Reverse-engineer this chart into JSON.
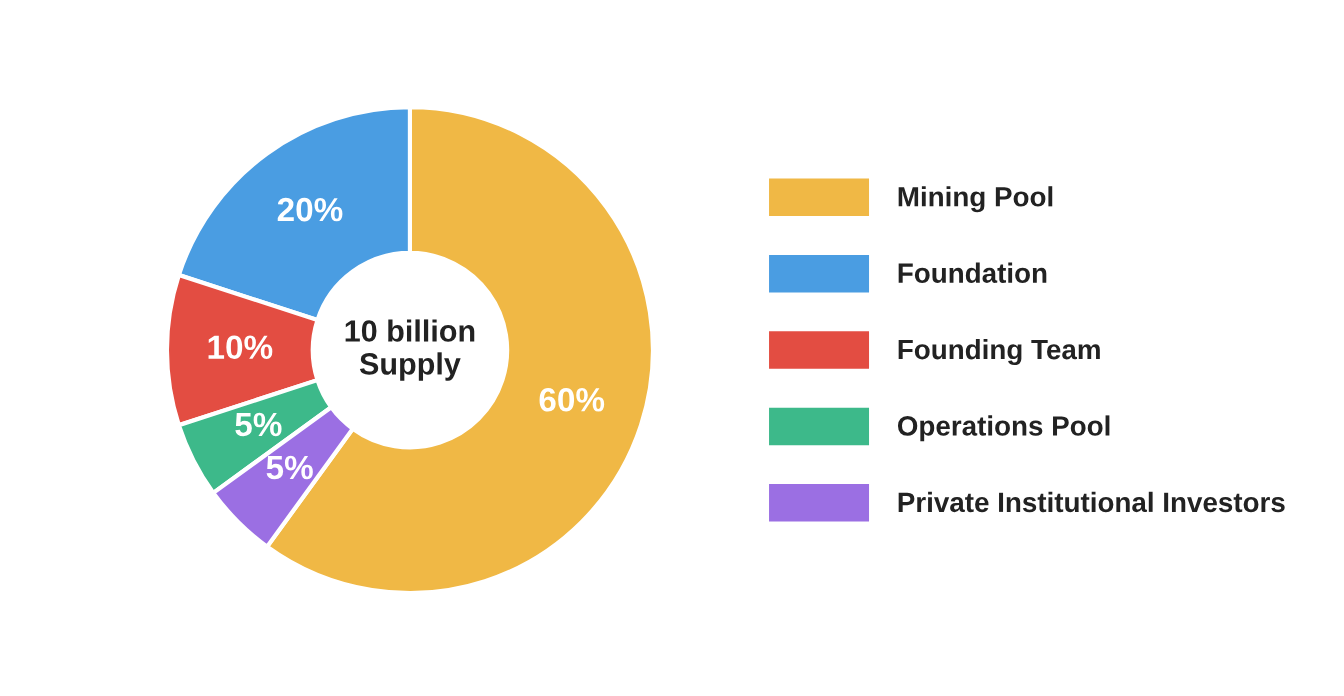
{
  "chart_data": {
    "type": "donut",
    "categories": [
      "Mining Pool",
      "Foundation",
      "Founding Team",
      "Operations Pool",
      "Private Institutional Investors"
    ],
    "values": [
      60,
      20,
      10,
      5,
      5
    ],
    "colors": [
      "#f0b845",
      "#4a9de2",
      "#e34d42",
      "#3db98a",
      "#9b6fe3"
    ],
    "value_labels": [
      "60%",
      "20%",
      "10%",
      "5%",
      "5%"
    ],
    "annotations": [
      "10 billion\nSupply"
    ],
    "legend": "right"
  }
}
